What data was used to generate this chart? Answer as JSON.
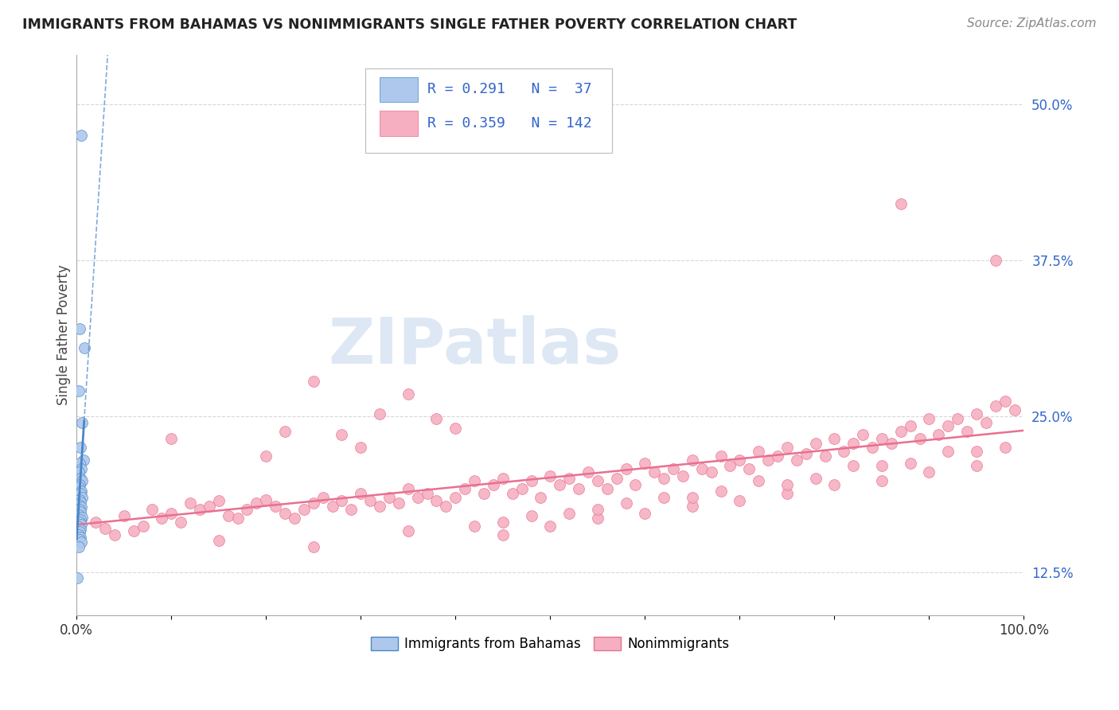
{
  "title": "IMMIGRANTS FROM BAHAMAS VS NONIMMIGRANTS SINGLE FATHER POVERTY CORRELATION CHART",
  "source": "Source: ZipAtlas.com",
  "ylabel": "Single Father Poverty",
  "r_bahamas": 0.291,
  "n_bahamas": 37,
  "r_nonimm": 0.359,
  "n_nonimm": 142,
  "xlim": [
    0.0,
    1.0
  ],
  "ylim": [
    0.09,
    0.54
  ],
  "yticks": [
    0.125,
    0.25,
    0.375,
    0.5
  ],
  "ytick_labels": [
    "12.5%",
    "25.0%",
    "37.5%",
    "50.0%"
  ],
  "xtick_labels": [
    "0.0%",
    "",
    "",
    "",
    "",
    "",
    "",
    "",
    "",
    "",
    "100.0%"
  ],
  "color_bahamas": "#adc8ec",
  "color_nonimm": "#f5afc0",
  "trendline_color_bahamas": "#4a86c8",
  "trendline_color_nonimm": "#e87090",
  "grid_color": "#d8d8d8",
  "background_color": "#ffffff",
  "legend_text_color": "#3366cc",
  "watermark_text": "ZIPatlas",
  "watermark_color": "#d0dff0",
  "legend_label_1": "Immigrants from Bahamas",
  "legend_label_2": "Nonimmigrants",
  "bahamas_x": [
    0.005,
    0.003,
    0.008,
    0.002,
    0.006,
    0.004,
    0.007,
    0.003,
    0.005,
    0.002,
    0.004,
    0.006,
    0.003,
    0.002,
    0.005,
    0.004,
    0.006,
    0.003,
    0.004,
    0.002,
    0.005,
    0.003,
    0.004,
    0.002,
    0.006,
    0.004,
    0.003,
    0.005,
    0.002,
    0.004,
    0.003,
    0.002,
    0.004,
    0.003,
    0.005,
    0.002,
    0.001
  ],
  "bahamas_y": [
    0.475,
    0.32,
    0.305,
    0.27,
    0.245,
    0.225,
    0.215,
    0.212,
    0.208,
    0.205,
    0.2,
    0.198,
    0.195,
    0.193,
    0.19,
    0.188,
    0.185,
    0.183,
    0.181,
    0.179,
    0.177,
    0.175,
    0.173,
    0.171,
    0.169,
    0.167,
    0.165,
    0.163,
    0.161,
    0.159,
    0.157,
    0.155,
    0.153,
    0.151,
    0.149,
    0.145,
    0.12
  ],
  "nonimm_x": [
    0.02,
    0.03,
    0.04,
    0.05,
    0.06,
    0.07,
    0.08,
    0.09,
    0.1,
    0.11,
    0.12,
    0.13,
    0.14,
    0.15,
    0.16,
    0.17,
    0.18,
    0.19,
    0.2,
    0.21,
    0.22,
    0.23,
    0.24,
    0.25,
    0.26,
    0.27,
    0.28,
    0.29,
    0.3,
    0.31,
    0.32,
    0.33,
    0.34,
    0.35,
    0.36,
    0.37,
    0.38,
    0.39,
    0.4,
    0.41,
    0.42,
    0.43,
    0.44,
    0.45,
    0.46,
    0.47,
    0.48,
    0.49,
    0.5,
    0.51,
    0.52,
    0.53,
    0.54,
    0.55,
    0.56,
    0.57,
    0.58,
    0.59,
    0.6,
    0.61,
    0.62,
    0.63,
    0.64,
    0.65,
    0.66,
    0.67,
    0.68,
    0.69,
    0.7,
    0.71,
    0.72,
    0.73,
    0.74,
    0.75,
    0.76,
    0.77,
    0.78,
    0.79,
    0.8,
    0.81,
    0.82,
    0.83,
    0.84,
    0.85,
    0.86,
    0.87,
    0.88,
    0.89,
    0.9,
    0.91,
    0.92,
    0.93,
    0.94,
    0.95,
    0.96,
    0.97,
    0.98,
    0.99,
    0.25,
    0.35,
    0.45,
    0.55,
    0.65,
    0.75,
    0.85,
    0.95,
    0.3,
    0.4,
    0.5,
    0.6,
    0.7,
    0.8,
    0.9,
    0.2,
    0.1,
    0.15,
    0.25,
    0.35,
    0.45,
    0.55,
    0.65,
    0.75,
    0.85,
    0.95,
    0.28,
    0.38,
    0.48,
    0.58,
    0.68,
    0.78,
    0.88,
    0.98,
    0.22,
    0.32,
    0.42,
    0.52,
    0.62,
    0.72,
    0.82,
    0.92,
    0.97,
    0.87
  ],
  "nonimm_y": [
    0.165,
    0.16,
    0.155,
    0.17,
    0.158,
    0.162,
    0.175,
    0.168,
    0.172,
    0.165,
    0.18,
    0.175,
    0.178,
    0.182,
    0.17,
    0.168,
    0.175,
    0.18,
    0.183,
    0.178,
    0.172,
    0.168,
    0.175,
    0.18,
    0.185,
    0.178,
    0.182,
    0.175,
    0.188,
    0.182,
    0.178,
    0.185,
    0.18,
    0.192,
    0.185,
    0.188,
    0.182,
    0.178,
    0.185,
    0.192,
    0.198,
    0.188,
    0.195,
    0.2,
    0.188,
    0.192,
    0.198,
    0.185,
    0.202,
    0.195,
    0.2,
    0.192,
    0.205,
    0.198,
    0.192,
    0.2,
    0.208,
    0.195,
    0.212,
    0.205,
    0.2,
    0.208,
    0.202,
    0.215,
    0.208,
    0.205,
    0.218,
    0.21,
    0.215,
    0.208,
    0.222,
    0.215,
    0.218,
    0.225,
    0.215,
    0.22,
    0.228,
    0.218,
    0.232,
    0.222,
    0.228,
    0.235,
    0.225,
    0.232,
    0.228,
    0.238,
    0.242,
    0.232,
    0.248,
    0.235,
    0.242,
    0.248,
    0.238,
    0.252,
    0.245,
    0.258,
    0.262,
    0.255,
    0.278,
    0.268,
    0.155,
    0.168,
    0.178,
    0.188,
    0.198,
    0.21,
    0.225,
    0.24,
    0.162,
    0.172,
    0.182,
    0.195,
    0.205,
    0.218,
    0.232,
    0.15,
    0.145,
    0.158,
    0.165,
    0.175,
    0.185,
    0.195,
    0.21,
    0.222,
    0.235,
    0.248,
    0.17,
    0.18,
    0.19,
    0.2,
    0.212,
    0.225,
    0.238,
    0.252,
    0.162,
    0.172,
    0.185,
    0.198,
    0.21,
    0.222,
    0.375,
    0.42
  ]
}
